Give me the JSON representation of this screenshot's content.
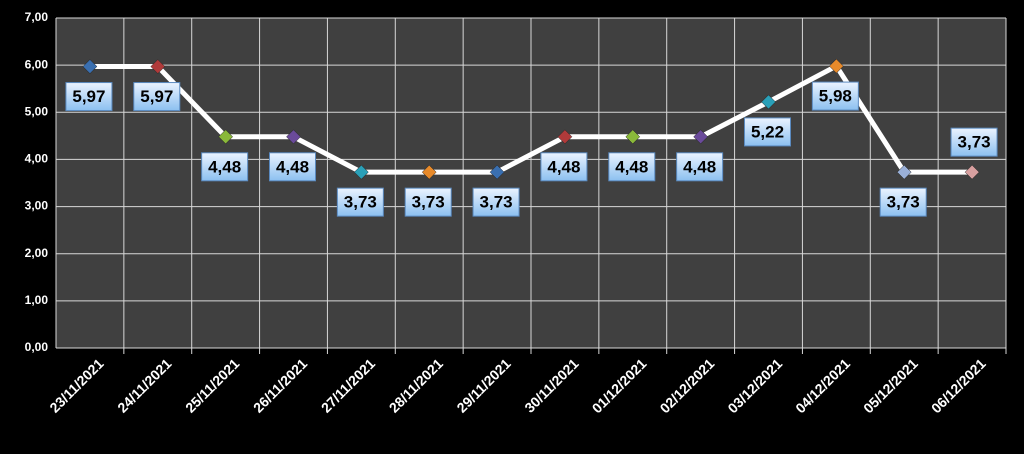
{
  "chart_data": {
    "type": "line",
    "categories": [
      "23/11/2021",
      "24/11/2021",
      "25/11/2021",
      "26/11/2021",
      "27/11/2021",
      "28/11/2021",
      "29/11/2021",
      "30/11/2021",
      "01/12/2021",
      "02/12/2021",
      "03/12/2021",
      "04/12/2021",
      "05/12/2021",
      "06/12/2021"
    ],
    "series": [
      {
        "color": "#ffffff",
        "values": [
          5.97,
          5.97,
          4.48,
          4.48,
          3.73,
          3.73,
          3.73,
          4.48,
          4.48,
          4.48,
          5.22,
          5.98,
          3.73,
          3.73
        ],
        "value_labels": [
          "5,97",
          "5,97",
          "4,48",
          "4,48",
          "3,73",
          "3,73",
          "3,73",
          "4,48",
          "4,48",
          "4,48",
          "5,22",
          "5,98",
          "3,73",
          "3,73"
        ],
        "point_colors": [
          "#3a6fb0",
          "#b03a3a",
          "#8ab83a",
          "#6a4a9a",
          "#2aa0b8",
          "#e88a2a",
          "#3a6fb0",
          "#b03a3a",
          "#8ab83a",
          "#6a4a9a",
          "#2aa0b8",
          "#e88a2a",
          "#9ab0d8",
          "#d8a0a0"
        ]
      }
    ],
    "ylim": [
      0,
      7
    ],
    "yticks": [
      {
        "value": 0,
        "label": "0,00"
      },
      {
        "value": 1,
        "label": "1,00"
      },
      {
        "value": 2,
        "label": "2,00"
      },
      {
        "value": 3,
        "label": "3,00"
      },
      {
        "value": 4,
        "label": "4,00"
      },
      {
        "value": 5,
        "label": "5,00"
      },
      {
        "value": 6,
        "label": "6,00"
      },
      {
        "value": 7,
        "label": "7,00"
      }
    ],
    "grid": true
  }
}
